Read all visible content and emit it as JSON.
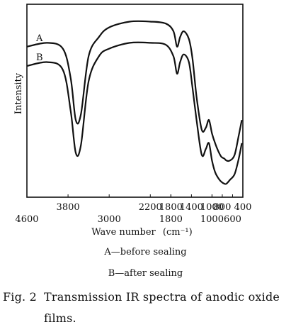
{
  "chart_data": {
    "type": "line",
    "title": "",
    "xlabel": "Wave number",
    "xlabel_unit": "(cm⁻¹)",
    "ylabel": "Intensity",
    "x_direction": "decreasing",
    "xlim": [
      4600,
      400
    ],
    "xticks_top_row": [
      "3800",
      "2200",
      "1800",
      "1400",
      "1000",
      "800",
      "400"
    ],
    "xticks_bottom_row": [
      "4600",
      "3000",
      "1800",
      "1000",
      "600"
    ],
    "grid": false,
    "series": [
      {
        "name": "A",
        "x": [
          4600,
          4200,
          3900,
          3750,
          3650,
          3550,
          3400,
          3200,
          3000,
          2600,
          2200,
          1900,
          1750,
          1680,
          1620,
          1550,
          1450,
          1380,
          1300,
          1200,
          1120,
          1060,
          1000,
          940,
          880,
          820,
          760,
          720,
          650,
          560,
          480,
          420
        ],
        "y": [
          0.78,
          0.8,
          0.77,
          0.62,
          0.4,
          0.43,
          0.73,
          0.83,
          0.88,
          0.91,
          0.91,
          0.9,
          0.86,
          0.78,
          0.83,
          0.86,
          0.82,
          0.72,
          0.52,
          0.35,
          0.36,
          0.4,
          0.33,
          0.28,
          0.24,
          0.21,
          0.2,
          0.19,
          0.19,
          0.22,
          0.32,
          0.4
        ]
      },
      {
        "name": "B",
        "x": [
          4600,
          4200,
          3900,
          3750,
          3650,
          3550,
          3400,
          3200,
          3000,
          2600,
          2200,
          1900,
          1750,
          1680,
          1620,
          1550,
          1450,
          1380,
          1300,
          1200,
          1120,
          1060,
          1000,
          940,
          880,
          820,
          760,
          720,
          650,
          560,
          480,
          420
        ],
        "y": [
          0.68,
          0.7,
          0.66,
          0.45,
          0.23,
          0.27,
          0.6,
          0.73,
          0.77,
          0.8,
          0.8,
          0.79,
          0.73,
          0.64,
          0.7,
          0.74,
          0.7,
          0.57,
          0.4,
          0.22,
          0.25,
          0.28,
          0.19,
          0.13,
          0.1,
          0.08,
          0.07,
          0.07,
          0.09,
          0.12,
          0.2,
          0.28
        ]
      }
    ],
    "ylim": [
      0,
      1
    ]
  },
  "legend": {
    "A": "A—before sealing",
    "B": "B—after sealing"
  },
  "caption": {
    "label": "Fig. 2",
    "text_line1": "Transmission IR spectra of anodic oxide",
    "text_line2": "films."
  }
}
